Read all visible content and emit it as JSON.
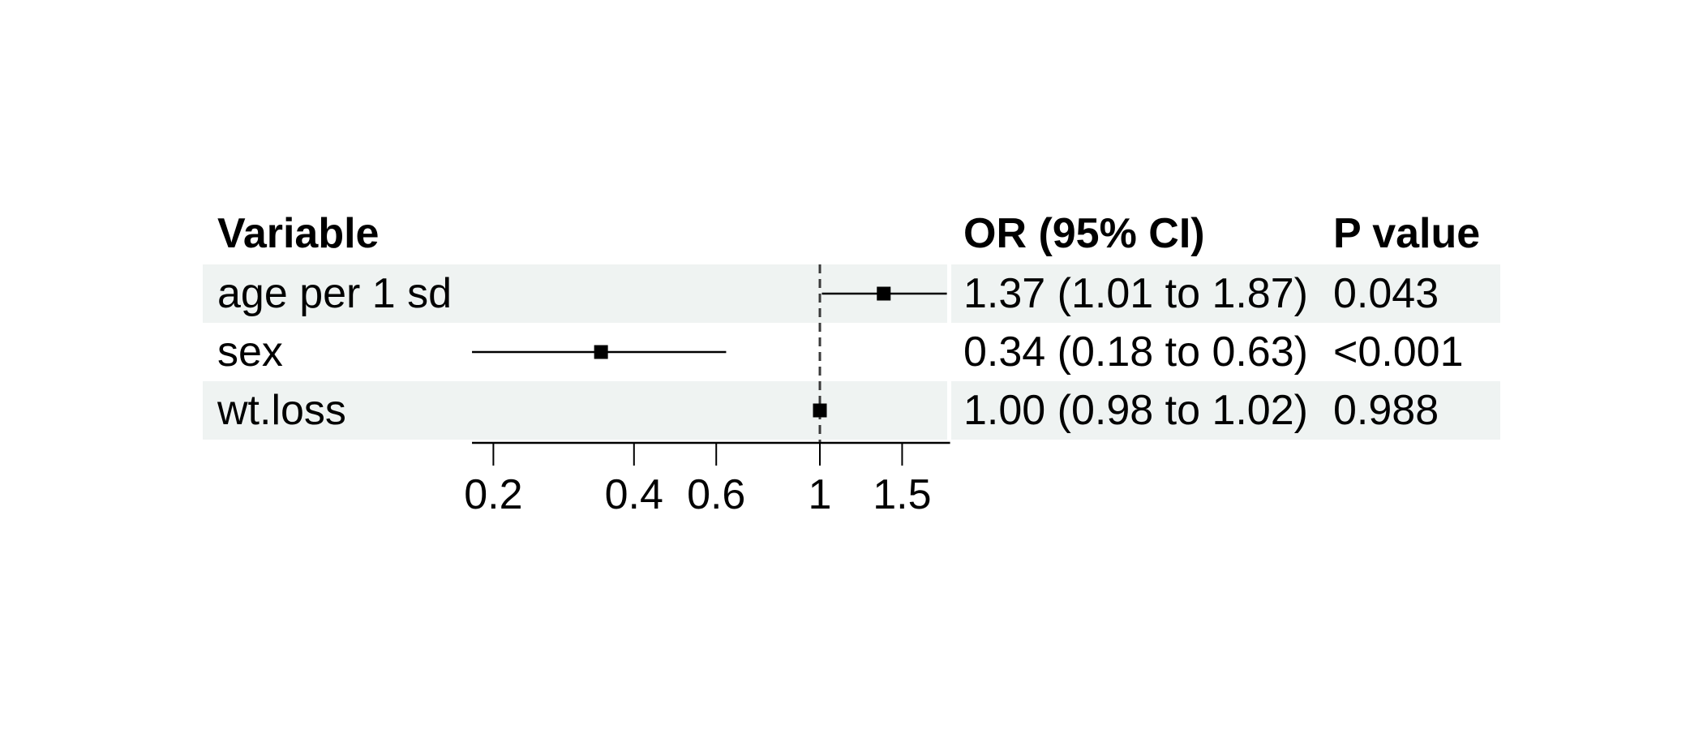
{
  "chart_data": {
    "type": "forest",
    "description": "Forest plot of odds ratios with 95% confidence intervals",
    "columns": {
      "variable_header": "Variable",
      "or_header": "OR (95% CI)",
      "pvalue_header": "P value"
    },
    "rows": [
      {
        "variable": "age per 1 sd",
        "or_ci": "1.37 (1.01 to 1.87)",
        "p_value": "0.043",
        "est": 1.37,
        "lo": 1.01,
        "hi": 1.87,
        "shaded": true
      },
      {
        "variable": "sex",
        "or_ci": "0.34 (0.18 to 0.63)",
        "p_value": "<0.001",
        "est": 0.34,
        "lo": 0.18,
        "hi": 0.63,
        "shaded": false
      },
      {
        "variable": "wt.loss",
        "or_ci": "1.00 (0.98 to 1.02)",
        "p_value": "0.988",
        "est": 1.0,
        "lo": 0.98,
        "hi": 1.02,
        "shaded": true
      }
    ],
    "axis": {
      "scale": "log",
      "ticks": [
        0.2,
        0.4,
        0.6,
        1,
        1.5
      ],
      "tick_labels": [
        "0.2",
        "0.4",
        "0.6",
        "1",
        "1.5"
      ],
      "range": [
        0.18,
        1.9
      ],
      "reference_line": 1
    },
    "legend_position": "none",
    "grid": false,
    "colors": {
      "stripe": "#eff3f2",
      "row_alt": "#ffffff",
      "marker": "#000000",
      "ci_line": "#000000",
      "axis": "#000000",
      "ref_line": "#3a3a3a",
      "text": "#000000",
      "background": "#ffffff"
    }
  }
}
